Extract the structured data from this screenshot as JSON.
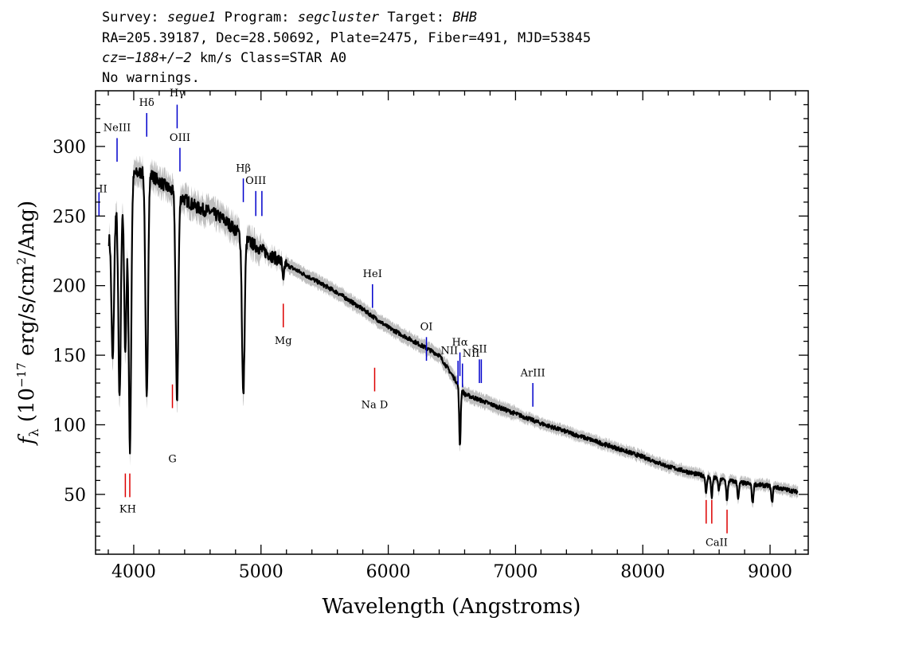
{
  "header": {
    "survey_label": "Survey:",
    "survey": "segue1",
    "program_label": "Program:",
    "program": "segcluster",
    "target_label": "Target:",
    "target": "BHB",
    "line2": "RA=205.39187, Dec=28.50692, Plate=2475, Fiber=491, MJD=53845",
    "cz_label": "cz=",
    "cz_value": "−188+/−2",
    "cz_rest": " km/s Class=STAR A0",
    "line4": "No warnings."
  },
  "chart_data": {
    "type": "line",
    "xlabel": "Wavelength (Angstroms)",
    "ylabel": "fλ (10^-17 erg/s/cm^2/Ang)",
    "xlim": [
      3700,
      9300
    ],
    "ylim": [
      7,
      340
    ],
    "x_ticks": [
      4000,
      5000,
      6000,
      7000,
      8000,
      9000
    ],
    "y_ticks": [
      50,
      100,
      150,
      200,
      250,
      300
    ],
    "colors": {
      "flux": "#000000",
      "error_band": "#bfbfbf",
      "emission": "#0000cc",
      "absorption": "#dd0000"
    },
    "continuum": [
      [
        3800,
        232
      ],
      [
        3900,
        272
      ],
      [
        4000,
        280
      ],
      [
        4100,
        282
      ],
      [
        4200,
        275
      ],
      [
        4300,
        268
      ],
      [
        4400,
        262
      ],
      [
        4500,
        256
      ],
      [
        4600,
        253
      ],
      [
        4700,
        248
      ],
      [
        4800,
        240
      ],
      [
        4900,
        232
      ],
      [
        5000,
        226
      ],
      [
        5200,
        215
      ],
      [
        5400,
        205
      ],
      [
        5600,
        195
      ],
      [
        5800,
        183
      ],
      [
        6000,
        170
      ],
      [
        6200,
        160
      ],
      [
        6400,
        150
      ],
      [
        6600,
        122
      ],
      [
        6800,
        115
      ],
      [
        7000,
        108
      ],
      [
        7200,
        101
      ],
      [
        7400,
        95
      ],
      [
        7600,
        89
      ],
      [
        7800,
        83
      ],
      [
        8000,
        77
      ],
      [
        8200,
        70
      ],
      [
        8400,
        65
      ],
      [
        8600,
        61
      ],
      [
        8800,
        58
      ],
      [
        9000,
        56
      ],
      [
        9200,
        52
      ]
    ],
    "absorption_features": [
      {
        "x": 3835,
        "depth": 100
      },
      {
        "x": 3889,
        "depth": 150
      },
      {
        "x": 3934,
        "depth": 120
      },
      {
        "x": 3970,
        "depth": 195
      },
      {
        "x": 4102,
        "depth": 165
      },
      {
        "x": 4340,
        "depth": 148
      },
      {
        "x": 4861,
        "depth": 115
      },
      {
        "x": 5175,
        "depth": 15
      },
      {
        "x": 6563,
        "depth": 42
      },
      {
        "x": 8498,
        "depth": 12
      },
      {
        "x": 8542,
        "depth": 14
      },
      {
        "x": 8598,
        "depth": 8
      },
      {
        "x": 8662,
        "depth": 15
      },
      {
        "x": 8750,
        "depth": 12
      },
      {
        "x": 8863,
        "depth": 14
      },
      {
        "x": 9015,
        "depth": 12
      }
    ],
    "emission_lines": [
      {
        "label": "II",
        "x": 3727,
        "y1": 250,
        "y2": 267,
        "label_y": 267,
        "align": "start"
      },
      {
        "label": "NeIII",
        "x": 3869,
        "y1": 289,
        "y2": 306,
        "label_y": 311
      },
      {
        "label": "Hδ",
        "x": 4102,
        "y1": 307,
        "y2": 324,
        "label_y": 329
      },
      {
        "label": "Hγ",
        "x": 4341,
        "y1": 313,
        "y2": 330,
        "label_y": 336
      },
      {
        "label": "OIII",
        "x": 4363,
        "y1": 282,
        "y2": 299,
        "label_y": 304
      },
      {
        "label": "Hβ",
        "x": 4861,
        "y1": 260,
        "y2": 277,
        "label_y": 282
      },
      {
        "label": "OIII",
        "x": 4959,
        "y1": 250,
        "y2": 268,
        "label_y": 273
      },
      {
        "label": "",
        "x": 5007,
        "y1": 250,
        "y2": 268,
        "label_y": 268
      },
      {
        "label": "HeI",
        "x": 5876,
        "y1": 184,
        "y2": 201,
        "label_y": 206
      },
      {
        "label": "OI",
        "x": 6300,
        "y1": 146,
        "y2": 163,
        "label_y": 168
      },
      {
        "label": "NII",
        "x": 6548,
        "y1": 129,
        "y2": 146,
        "label_y": 151,
        "align": "end"
      },
      {
        "label": "Hα",
        "x": 6563,
        "y1": 135,
        "y2": 152,
        "label_y": 157
      },
      {
        "label": "NII",
        "x": 6583,
        "y1": 127,
        "y2": 144,
        "label_y": 149,
        "align": "start"
      },
      {
        "label": "SII",
        "x": 6716,
        "y1": 130,
        "y2": 147,
        "label_y": 152
      },
      {
        "label": "",
        "x": 6731,
        "y1": 130,
        "y2": 147,
        "label_y": 147
      },
      {
        "label": "ArIII",
        "x": 7136,
        "y1": 113,
        "y2": 130,
        "label_y": 135
      }
    ],
    "absorption_lines": [
      {
        "label": "KH",
        "x": 3934,
        "y1": 48,
        "y2": 65,
        "label_y": 44,
        "lx": 3953
      },
      {
        "label": "",
        "x": 3969,
        "y1": 48,
        "y2": 65,
        "label_y": 44
      },
      {
        "label": "G",
        "x": 4304,
        "y1": 112,
        "y2": 129,
        "label_y": 80
      },
      {
        "label": "Mg",
        "x": 5175,
        "y1": 170,
        "y2": 187,
        "label_y": 165
      },
      {
        "label": "Na D",
        "x": 5893,
        "y1": 124,
        "y2": 141,
        "label_y": 119
      },
      {
        "label": "CaII",
        "x": 8498,
        "y1": 29,
        "y2": 46,
        "label_y": 20,
        "lx": 8580
      },
      {
        "label": "",
        "x": 8542,
        "y1": 29,
        "y2": 46,
        "label_y": 20
      },
      {
        "label": "",
        "x": 8662,
        "y1": 22,
        "y2": 39,
        "label_y": 20
      }
    ]
  }
}
